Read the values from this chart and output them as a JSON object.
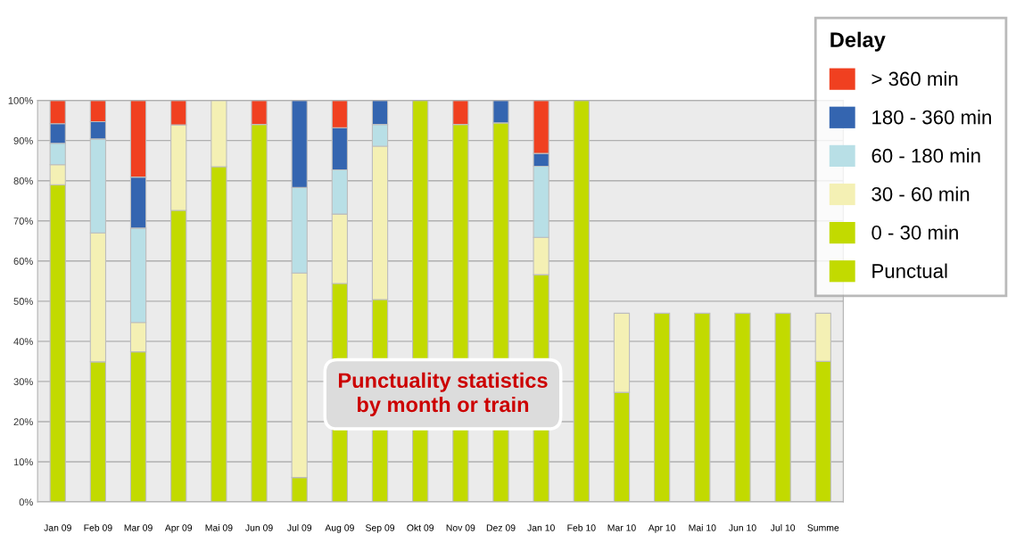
{
  "chart_data": {
    "type": "bar",
    "stacked": true,
    "categories": [
      "Jan 09",
      "Feb 09",
      "Mar 09",
      "Apr 09",
      "Mai 09",
      "Jun 09",
      "Jul 09",
      "Aug 09",
      "Sep 09",
      "Okt 09",
      "Nov 09",
      "Dez 09",
      "Jan 10",
      "Feb 10",
      "Mar 10",
      "Apr 10",
      "Mai 10",
      "Jun 10",
      "Jul 10",
      "Summe"
    ],
    "series": [
      {
        "name": "Punctual",
        "color": "#c2da00",
        "values": [
          79.0,
          34.9,
          37.4,
          72.6,
          83.5,
          94.0,
          6.1,
          54.4,
          50.4,
          100,
          94.0,
          94.4,
          56.6,
          100,
          27.3,
          47,
          47,
          47,
          47,
          35.0
        ]
      },
      {
        "name": "0 - 30 min",
        "color": "#c2da00",
        "values": [
          null,
          null,
          null,
          null,
          null,
          null,
          null,
          null,
          null,
          null,
          null,
          null,
          null,
          null,
          null,
          null,
          null,
          null,
          null,
          null
        ]
      },
      {
        "name": "30 - 60 min",
        "color": "#f4f0b4",
        "values": [
          5.0,
          32.1,
          7.3,
          21.3,
          16.5,
          0,
          50.9,
          17.3,
          38.2,
          0,
          0,
          0,
          9.3,
          0,
          19.7,
          null,
          null,
          null,
          null,
          12
        ]
      },
      {
        "name": "60 - 180 min",
        "color": "#b8dfe6",
        "values": [
          5.3,
          23.4,
          23.5,
          0,
          0,
          0,
          21.3,
          11.0,
          5.4,
          0,
          0,
          0,
          17.7,
          0,
          null,
          null,
          null,
          null,
          null,
          null
        ]
      },
      {
        "name": "180 - 360 min",
        "color": "#3465b0",
        "values": [
          4.9,
          4.3,
          12.7,
          0,
          0,
          0,
          21.7,
          10.5,
          6.0,
          0,
          0,
          5.6,
          3.2,
          0,
          null,
          null,
          null,
          null,
          null,
          null
        ]
      },
      {
        "name": "> 360 min",
        "color": "#f04020",
        "values": [
          5.8,
          5.3,
          19.1,
          6.1,
          0,
          6.0,
          0,
          6.8,
          0,
          0,
          6.0,
          0,
          13.2,
          0,
          null,
          null,
          null,
          null,
          null,
          null
        ]
      }
    ],
    "ylim": [
      0,
      100
    ],
    "yticks": [
      {
        "value": 0,
        "label": "0%"
      },
      {
        "value": 10,
        "label": "10%"
      },
      {
        "value": 20,
        "label": "20%"
      },
      {
        "value": 30,
        "label": "30%"
      },
      {
        "value": 40,
        "label": "40%"
      },
      {
        "value": 50,
        "label": "50%"
      },
      {
        "value": 60,
        "label": "60%"
      },
      {
        "value": 70,
        "label": "70%"
      },
      {
        "value": 80,
        "label": "80%"
      },
      {
        "value": 90,
        "label": "90%"
      },
      {
        "value": 100,
        "label": "100%"
      }
    ],
    "grid": "y",
    "legend": "top right",
    "legend_title": "Delay",
    "annotations": [
      "Punctuality statistics\nby month or train"
    ]
  }
}
